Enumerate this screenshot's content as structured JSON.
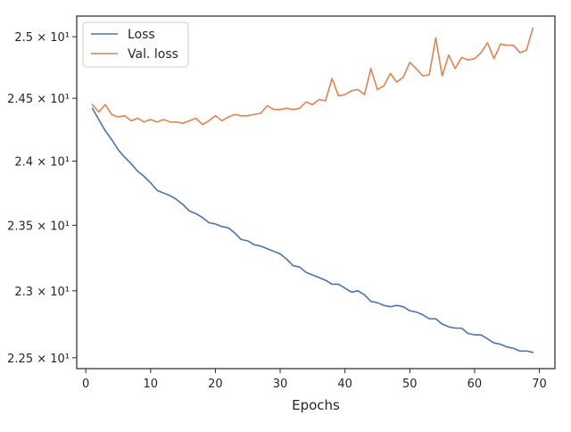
{
  "chart_data": {
    "type": "line",
    "title": "",
    "xlabel": "Epochs",
    "ylabel": "",
    "yscale": "log",
    "xlim": [
      -1.4,
      72.4
    ],
    "ylim": [
      22.42,
      25.17
    ],
    "xticks": [
      0,
      10,
      20,
      30,
      40,
      50,
      60,
      70
    ],
    "xtick_labels": [
      "0",
      "10",
      "20",
      "30",
      "40",
      "50",
      "60",
      "70"
    ],
    "yticks": [
      22.5,
      23.0,
      23.5,
      24.0,
      24.5,
      25.0
    ],
    "ytick_labels": [
      "2.25 × 10¹",
      "2.3 × 10¹",
      "2.35 × 10¹",
      "2.4 × 10¹",
      "2.45 × 10¹",
      "2.5 × 10¹"
    ],
    "grid": false,
    "legend_position": "top-left",
    "colors": {
      "loss": "#4c72b0",
      "val_loss": "#dd8452",
      "axes": "#262626"
    },
    "x": [
      1,
      2,
      3,
      4,
      5,
      6,
      7,
      8,
      9,
      10,
      11,
      12,
      13,
      14,
      15,
      16,
      17,
      18,
      19,
      20,
      21,
      22,
      23,
      24,
      25,
      26,
      27,
      28,
      29,
      30,
      31,
      32,
      33,
      34,
      35,
      36,
      37,
      38,
      39,
      40,
      41,
      42,
      43,
      44,
      45,
      46,
      47,
      48,
      49,
      50,
      51,
      52,
      53,
      54,
      55,
      56,
      57,
      58,
      59,
      60,
      61,
      62,
      63,
      64,
      65,
      66,
      67,
      68,
      69
    ],
    "series": [
      {
        "name": "Loss",
        "color": "#4c72b0",
        "values": [
          24.42,
          24.33,
          24.24,
          24.17,
          24.09,
          24.03,
          23.98,
          23.92,
          23.88,
          23.83,
          23.77,
          23.75,
          23.73,
          23.7,
          23.66,
          23.61,
          23.59,
          23.56,
          23.52,
          23.51,
          23.49,
          23.48,
          23.44,
          23.39,
          23.38,
          23.35,
          23.34,
          23.32,
          23.3,
          23.28,
          23.24,
          23.19,
          23.18,
          23.14,
          23.12,
          23.1,
          23.08,
          23.05,
          23.05,
          23.02,
          22.99,
          23.0,
          22.97,
          22.92,
          22.91,
          22.89,
          22.88,
          22.89,
          22.88,
          22.85,
          22.84,
          22.82,
          22.79,
          22.79,
          22.75,
          22.73,
          22.72,
          22.72,
          22.68,
          22.67,
          22.67,
          22.64,
          22.61,
          22.6,
          22.58,
          22.57,
          22.55,
          22.55,
          22.54
        ]
      },
      {
        "name": "Val. loss",
        "color": "#dd8452",
        "values": [
          24.45,
          24.39,
          24.45,
          24.37,
          24.35,
          24.36,
          24.32,
          24.34,
          24.31,
          24.33,
          24.31,
          24.33,
          24.31,
          24.31,
          24.3,
          24.32,
          24.34,
          24.29,
          24.32,
          24.36,
          24.32,
          24.35,
          24.37,
          24.36,
          24.36,
          24.37,
          24.38,
          24.44,
          24.41,
          24.41,
          24.42,
          24.41,
          24.42,
          24.47,
          24.45,
          24.49,
          24.48,
          24.66,
          24.52,
          24.53,
          24.56,
          24.57,
          24.53,
          24.74,
          24.57,
          24.6,
          24.7,
          24.63,
          24.67,
          24.79,
          24.74,
          24.68,
          24.69,
          24.99,
          24.68,
          24.85,
          24.74,
          24.83,
          24.81,
          24.82,
          24.87,
          24.95,
          24.82,
          24.94,
          24.93,
          24.93,
          24.87,
          24.89,
          25.07
        ]
      }
    ]
  }
}
